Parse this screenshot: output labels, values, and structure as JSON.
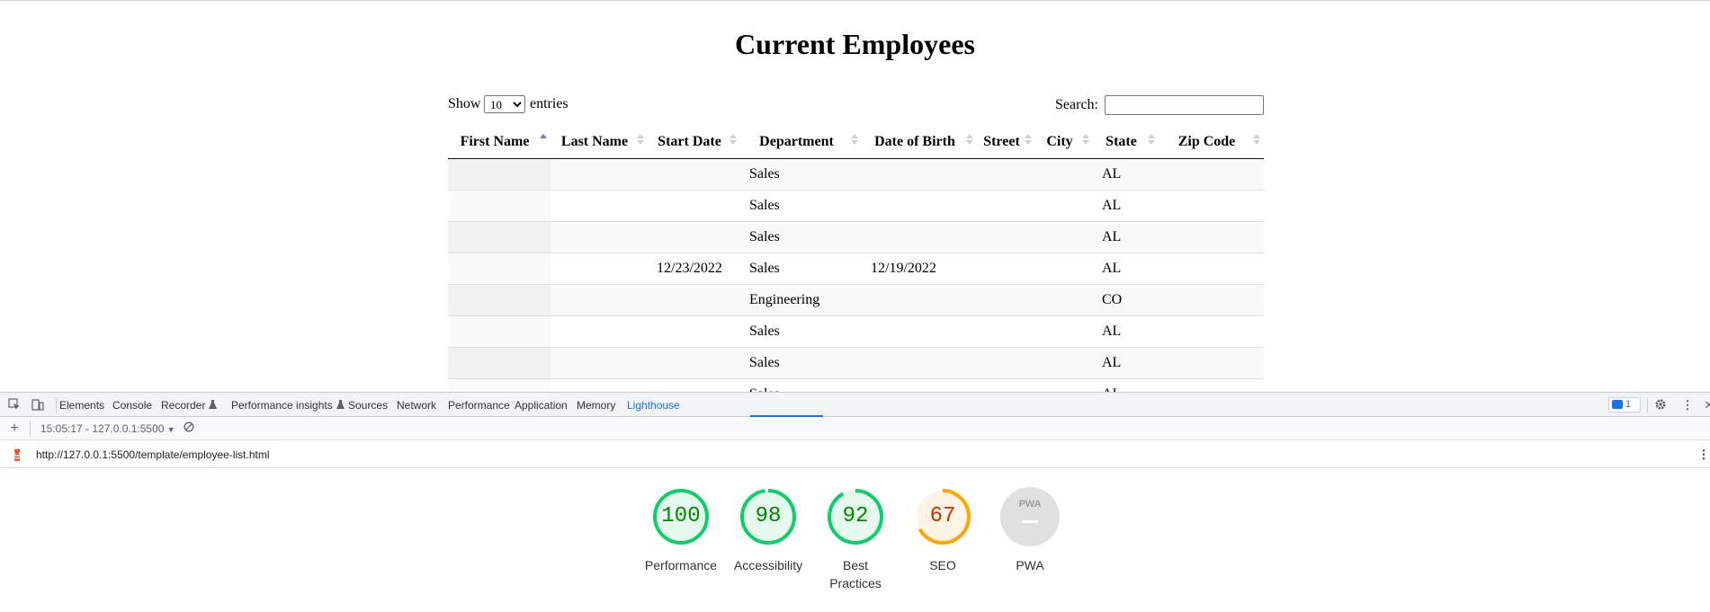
{
  "page": {
    "title": "Current Employees",
    "show_label": "Show",
    "entries_label": "entries",
    "page_length_selected": "10",
    "search_label": "Search:",
    "search_value": ""
  },
  "table": {
    "columns": [
      "First Name",
      "Last Name",
      "Start Date",
      "Department",
      "Date of Birth",
      "Street",
      "City",
      "State",
      "Zip Code"
    ],
    "sorted_column": "First Name",
    "sort_direction": "ascending",
    "rows": [
      [
        "",
        "",
        "",
        "Sales",
        "",
        "",
        "",
        "AL",
        ""
      ],
      [
        "",
        "",
        "",
        "Sales",
        "",
        "",
        "",
        "AL",
        ""
      ],
      [
        "",
        "",
        "",
        "Sales",
        "",
        "",
        "",
        "AL",
        ""
      ],
      [
        "",
        "",
        "12/23/2022",
        "Sales",
        "12/19/2022",
        "",
        "",
        "AL",
        ""
      ],
      [
        "",
        "",
        "",
        "Engineering",
        "",
        "",
        "",
        "CO",
        ""
      ],
      [
        "",
        "",
        "",
        "Sales",
        "",
        "",
        "",
        "AL",
        ""
      ],
      [
        "",
        "",
        "",
        "Sales",
        "",
        "",
        "",
        "AL",
        ""
      ],
      [
        "",
        "",
        "",
        "Sales",
        "",
        "",
        "",
        "AL",
        ""
      ]
    ]
  },
  "devtools": {
    "tabs": [
      "Elements",
      "Console",
      "Recorder",
      "Performance insights",
      "Sources",
      "Network",
      "Performance",
      "Application",
      "Memory",
      "Lighthouse"
    ],
    "active_tab": "Lighthouse",
    "issues_count": "1",
    "report_selector": "15:05:17 - 127.0.0.1:5500",
    "url": "http://127.0.0.1:5500/template/employee-list.html",
    "scores": [
      {
        "label": "Performance",
        "score": "100",
        "value": 100,
        "color": "#0cce6b",
        "text_color": "#008800"
      },
      {
        "label": "Accessibility",
        "score": "98",
        "value": 98,
        "color": "#0cce6b",
        "text_color": "#008800"
      },
      {
        "label": "Best Practices",
        "score": "92",
        "value": 92,
        "color": "#0cce6b",
        "text_color": "#008800"
      },
      {
        "label": "SEO",
        "score": "67",
        "value": 67,
        "color": "#ffa400",
        "text_color": "#c33300"
      },
      {
        "label": "PWA",
        "score": "PWA",
        "value": 0,
        "color": "#e0e0e0",
        "text_color": "#9e9e9e"
      }
    ]
  },
  "colors": {
    "accent": "#1a73e8",
    "sort_active": "#7a73d3",
    "pass": "#0cce6b",
    "average": "#ffa400"
  }
}
